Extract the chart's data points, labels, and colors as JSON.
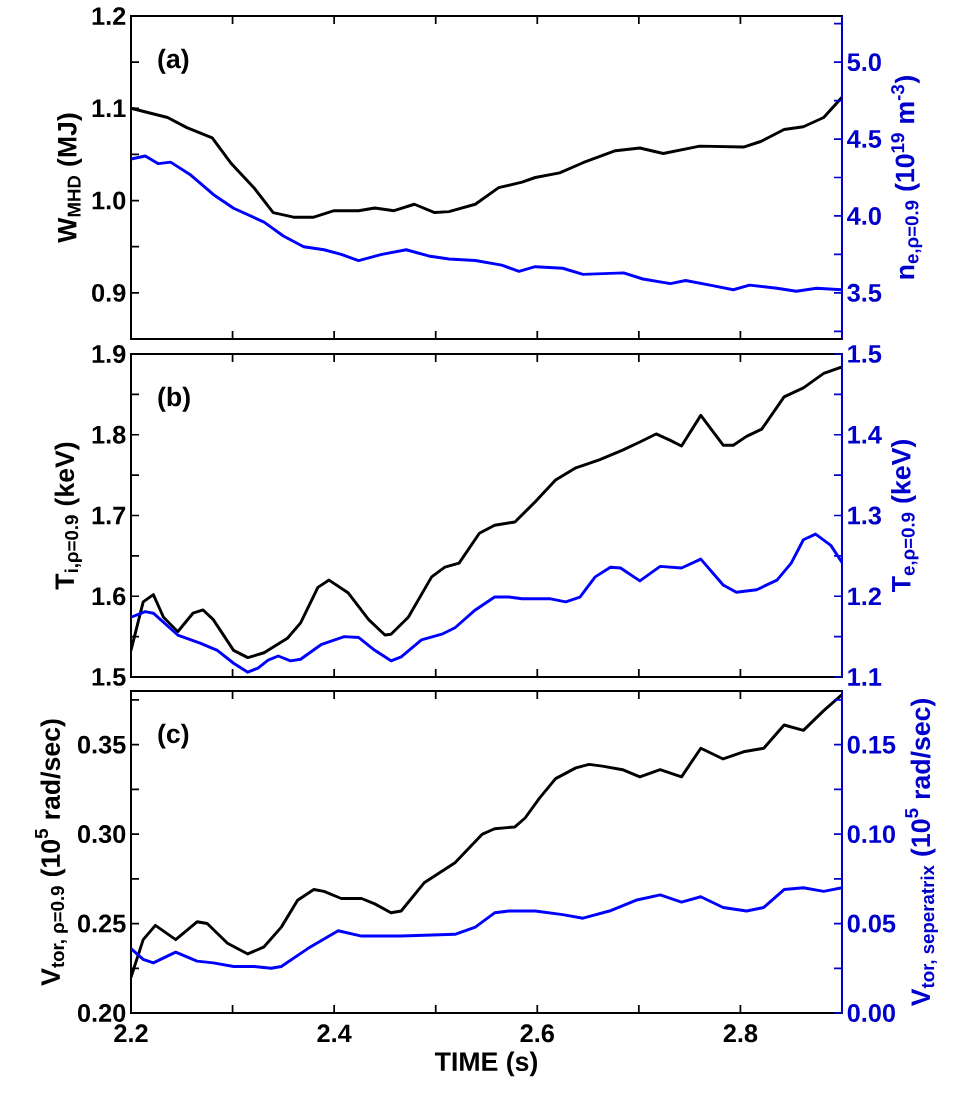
{
  "chart_data": [
    {
      "type": "line",
      "ylabel": "W$_{MHD}$ (MJ)",
      "y2label": "n$_{e,ρ=0.9}$ (10$^{19}$ m$^{-3}$)",
      "annotations": [
        "(a)"
      ],
      "tick_labels": "y",
      "xlim": [
        2.2,
        2.9
      ],
      "xticks": [
        2.2,
        {
          "value": 2.3,
          "label": null
        },
        2.4,
        {
          "value": 2.5,
          "label": null
        },
        2.6,
        {
          "value": 2.7,
          "label": null
        },
        2.8
      ],
      "ylim": [
        0.85,
        1.2
      ],
      "yticks": [
        0.9,
        {
          "value": 0.95,
          "label": null
        },
        {
          "value": 1.0,
          "label": "1.0"
        },
        {
          "value": 1.05,
          "label": null
        },
        1.1,
        {
          "value": 1.15,
          "label": null
        },
        1.2
      ],
      "y2lim": [
        3.2,
        5.3
      ],
      "y2ticks": [
        {
          "value": 3.25,
          "label": null
        },
        3.5,
        {
          "value": 3.75,
          "label": null
        },
        {
          "value": 4.0,
          "label": "4.0"
        },
        {
          "value": 4.25,
          "label": null
        },
        4.5,
        {
          "value": 4.75,
          "label": null
        },
        {
          "value": 5.0,
          "label": "5.0"
        },
        {
          "value": 5.25,
          "label": null
        }
      ],
      "series": [
        {
          "color": "#000000",
          "x": [
            2.2,
            2.236,
            2.255,
            2.28,
            2.298,
            2.321,
            2.34,
            2.36,
            2.38,
            2.4,
            2.424,
            2.44,
            2.459,
            2.479,
            2.499,
            2.513,
            2.539,
            2.562,
            2.585,
            2.598,
            2.622,
            2.645,
            2.677,
            2.701,
            2.724,
            2.76,
            2.803,
            2.82,
            2.843,
            2.862,
            2.882,
            2.9
          ],
          "values": [
            1.1,
            1.09,
            1.079,
            1.068,
            1.041,
            1.014,
            0.987,
            0.982,
            0.982,
            0.989,
            0.989,
            0.992,
            0.989,
            0.996,
            0.987,
            0.988,
            0.996,
            1.014,
            1.02,
            1.025,
            1.03,
            1.041,
            1.054,
            1.057,
            1.051,
            1.059,
            1.058,
            1.064,
            1.077,
            1.08,
            1.09,
            1.112
          ]
        },
        {
          "color": "#0000ff",
          "axis": "y2",
          "x": [
            2.2,
            2.214,
            2.227,
            2.239,
            2.258,
            2.281,
            2.301,
            2.331,
            2.35,
            2.37,
            2.39,
            2.407,
            2.424,
            2.447,
            2.471,
            2.493,
            2.513,
            2.539,
            2.565,
            2.582,
            2.598,
            2.625,
            2.645,
            2.685,
            2.704,
            2.731,
            2.746,
            2.77,
            2.793,
            2.809,
            2.836,
            2.855,
            2.875,
            2.9
          ],
          "values": [
            4.37,
            4.39,
            4.34,
            4.35,
            4.27,
            4.14,
            4.05,
            3.96,
            3.87,
            3.8,
            3.78,
            3.75,
            3.71,
            3.75,
            3.78,
            3.74,
            3.72,
            3.71,
            3.68,
            3.64,
            3.67,
            3.66,
            3.62,
            3.63,
            3.59,
            3.56,
            3.58,
            3.55,
            3.52,
            3.55,
            3.53,
            3.51,
            3.53,
            3.52
          ]
        }
      ]
    },
    {
      "type": "line",
      "ylabel": "T$_{i,ρ=0.9}$ (keV)",
      "y2label": "T$_{e,ρ=0.9}$ (keV)",
      "annotations": [
        "(b)"
      ],
      "tick_labels": "y",
      "xlim": [
        2.2,
        2.9
      ],
      "xticks": [
        2.2,
        {
          "value": 2.3,
          "label": null
        },
        2.4,
        {
          "value": 2.5,
          "label": null
        },
        2.6,
        {
          "value": 2.7,
          "label": null
        },
        2.8
      ],
      "ylim": [
        1.5,
        1.9
      ],
      "yticks": [
        1.5,
        {
          "value": 1.55,
          "label": null
        },
        1.6,
        {
          "value": 1.65,
          "label": null
        },
        1.7,
        {
          "value": 1.75,
          "label": null
        },
        1.8,
        {
          "value": 1.85,
          "label": null
        },
        1.9
      ],
      "y2lim": [
        1.1,
        1.5
      ],
      "y2ticks": [
        1.1,
        {
          "value": 1.15,
          "label": null
        },
        1.2,
        {
          "value": 1.25,
          "label": null
        },
        1.3,
        {
          "value": 1.35,
          "label": null
        },
        1.4,
        {
          "value": 1.45,
          "label": null
        },
        1.5
      ],
      "series": [
        {
          "color": "#000000",
          "x": [
            2.2,
            2.212,
            2.222,
            2.232,
            2.246,
            2.261,
            2.271,
            2.281,
            2.301,
            2.315,
            2.331,
            2.354,
            2.367,
            2.384,
            2.395,
            2.414,
            2.434,
            2.45,
            2.456,
            2.473,
            2.496,
            2.509,
            2.523,
            2.543,
            2.558,
            2.578,
            2.598,
            2.618,
            2.638,
            2.661,
            2.684,
            2.701,
            2.717,
            2.731,
            2.742,
            2.761,
            2.783,
            2.793,
            2.806,
            2.821,
            2.843,
            2.862,
            2.882,
            2.9
          ],
          "values": [
            1.533,
            1.593,
            1.602,
            1.574,
            1.556,
            1.579,
            1.583,
            1.571,
            1.533,
            1.524,
            1.53,
            1.548,
            1.567,
            1.611,
            1.62,
            1.604,
            1.571,
            1.552,
            1.553,
            1.574,
            1.624,
            1.636,
            1.641,
            1.678,
            1.688,
            1.692,
            1.717,
            1.744,
            1.759,
            1.769,
            1.781,
            1.791,
            1.801,
            1.793,
            1.786,
            1.824,
            1.787,
            1.787,
            1.798,
            1.807,
            1.847,
            1.858,
            1.876,
            1.884
          ]
        },
        {
          "color": "#0000ff",
          "axis": "y2",
          "x": [
            2.2,
            2.214,
            2.222,
            2.246,
            2.268,
            2.285,
            2.301,
            2.315,
            2.325,
            2.335,
            2.345,
            2.357,
            2.367,
            2.387,
            2.41,
            2.424,
            2.44,
            2.456,
            2.466,
            2.486,
            2.506,
            2.519,
            2.539,
            2.558,
            2.572,
            2.585,
            2.612,
            2.628,
            2.642,
            2.657,
            2.672,
            2.682,
            2.701,
            2.721,
            2.742,
            2.761,
            2.783,
            2.796,
            2.816,
            2.836,
            2.85,
            2.862,
            2.874,
            2.889,
            2.9
          ],
          "values": [
            1.174,
            1.181,
            1.179,
            1.152,
            1.142,
            1.133,
            1.117,
            1.106,
            1.111,
            1.121,
            1.126,
            1.12,
            1.122,
            1.14,
            1.15,
            1.149,
            1.133,
            1.12,
            1.125,
            1.146,
            1.153,
            1.161,
            1.183,
            1.199,
            1.199,
            1.197,
            1.197,
            1.193,
            1.199,
            1.224,
            1.236,
            1.235,
            1.219,
            1.237,
            1.235,
            1.246,
            1.214,
            1.205,
            1.208,
            1.22,
            1.241,
            1.27,
            1.277,
            1.263,
            1.242
          ]
        }
      ]
    },
    {
      "type": "line",
      "xlabel": "TIME (s)",
      "ylabel": "\\text{\\textbf{V}}_{\\text{\\textbf{tor, ρ=0.9}}}\\text{\\textbf{ (10}}^{\\text{\\textbf{5}}}\\text{\\textbf{ rad/sec)}}",
      "y2label": "\\text{\\textbf{V}}_{\\text{\\textbf{tor, seperatrix}}}\\text{\\textbf{ (10}}^{\\text{\\textbf{5}}}\\text{\\textbf{ rad/sec)}}",
      "annotations": [
        "(c)"
      ],
      "xlim": [
        2.2,
        2.9
      ],
      "xticks": [
        2.2,
        {
          "value": 2.3,
          "label": null
        },
        2.4,
        {
          "value": 2.5,
          "label": null
        },
        2.6,
        {
          "value": 2.7,
          "label": null
        },
        2.8
      ],
      "ylim": [
        0.2,
        0.38
      ],
      "yticks": [
        {
          "value": 0.2,
          "label": "0.20"
        },
        {
          "value": 0.225,
          "label": null
        },
        0.25,
        {
          "value": 0.275,
          "label": null
        },
        {
          "value": 0.3,
          "label": "0.30"
        },
        {
          "value": 0.325,
          "label": null
        },
        0.35,
        {
          "value": 0.375,
          "label": null
        }
      ],
      "y2lim": [
        0,
        0.18
      ],
      "y2ticks": [
        {
          "value": 0,
          "label": "0.00"
        },
        {
          "value": 0.025,
          "label": null
        },
        0.05,
        {
          "value": 0.075,
          "label": null
        },
        {
          "value": 0.1,
          "label": "0.10"
        },
        {
          "value": 0.125,
          "label": null
        },
        0.15,
        {
          "value": 0.175,
          "label": null
        }
      ],
      "series": [
        {
          "color": "#000000",
          "x": [
            2.2,
            2.212,
            2.224,
            2.244,
            2.265,
            2.275,
            2.295,
            2.315,
            2.331,
            2.348,
            2.364,
            2.38,
            2.39,
            2.407,
            2.427,
            2.44,
            2.456,
            2.466,
            2.489,
            2.519,
            2.546,
            2.558,
            2.578,
            2.588,
            2.602,
            2.618,
            2.638,
            2.651,
            2.664,
            2.684,
            2.701,
            2.721,
            2.742,
            2.761,
            2.783,
            2.803,
            2.823,
            2.843,
            2.862,
            2.882,
            2.9
          ],
          "values": [
            0.22,
            0.241,
            0.249,
            0.241,
            0.251,
            0.25,
            0.239,
            0.233,
            0.237,
            0.248,
            0.263,
            0.269,
            0.268,
            0.264,
            0.264,
            0.261,
            0.256,
            0.257,
            0.273,
            0.284,
            0.3,
            0.303,
            0.304,
            0.309,
            0.32,
            0.331,
            0.337,
            0.339,
            0.338,
            0.336,
            0.332,
            0.336,
            0.332,
            0.348,
            0.342,
            0.346,
            0.348,
            0.361,
            0.358,
            0.369,
            0.378
          ]
        },
        {
          "color": "#0000ff",
          "axis": "y2",
          "x": [
            2.2,
            2.212,
            2.222,
            2.244,
            2.265,
            2.281,
            2.301,
            2.321,
            2.338,
            2.348,
            2.374,
            2.404,
            2.427,
            2.466,
            2.519,
            2.539,
            2.558,
            2.572,
            2.598,
            2.625,
            2.645,
            2.671,
            2.697,
            2.721,
            2.742,
            2.761,
            2.783,
            2.806,
            2.823,
            2.843,
            2.862,
            2.882,
            2.9
          ],
          "values": [
            0.036,
            0.03,
            0.028,
            0.034,
            0.029,
            0.028,
            0.026,
            0.026,
            0.025,
            0.026,
            0.036,
            0.046,
            0.043,
            0.043,
            0.044,
            0.048,
            0.056,
            0.057,
            0.057,
            0.055,
            0.053,
            0.057,
            0.063,
            0.066,
            0.062,
            0.065,
            0.059,
            0.057,
            0.059,
            0.069,
            0.07,
            0.068,
            0.07
          ]
        }
      ]
    }
  ]
}
